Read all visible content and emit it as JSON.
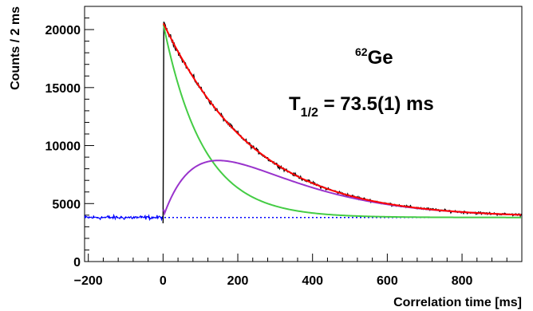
{
  "chart_data": {
    "type": "line",
    "xlabel": "Correlation time [ms]",
    "ylabel": "Counts / 2 ms",
    "xlim": [
      -210,
      960
    ],
    "ylim": [
      0,
      22000
    ],
    "xticks": [
      -200,
      0,
      200,
      400,
      600,
      800
    ],
    "xtick_labels": [
      "−200",
      "0",
      "200",
      "400",
      "600",
      "800"
    ],
    "yticks": [
      0,
      5000,
      10000,
      15000,
      20000
    ],
    "ytick_labels": [
      "0",
      "5000",
      "10000",
      "15000",
      "20000"
    ],
    "grid": false,
    "annotations": {
      "isotope_mass": "62",
      "isotope_symbol": "Ge",
      "halflife_prefix": "T",
      "halflife_sub": "1/2",
      "halflife_value": " = 73.5(1) ms"
    },
    "model": {
      "background_level": 3800,
      "onset_time": 0,
      "halflife_ms": 73.5,
      "daughter_halflife_ms": 150,
      "parent_amplitude": 16800,
      "daughter_amplitude": 7800
    },
    "series": [
      {
        "role": "data",
        "color": "#000000"
      },
      {
        "role": "total-fit",
        "color": "#ff0000"
      },
      {
        "role": "parent-decay",
        "color": "#44cc44"
      },
      {
        "role": "daughter-decay",
        "color": "#9933cc"
      },
      {
        "role": "background",
        "color": "#0000ff"
      }
    ]
  }
}
